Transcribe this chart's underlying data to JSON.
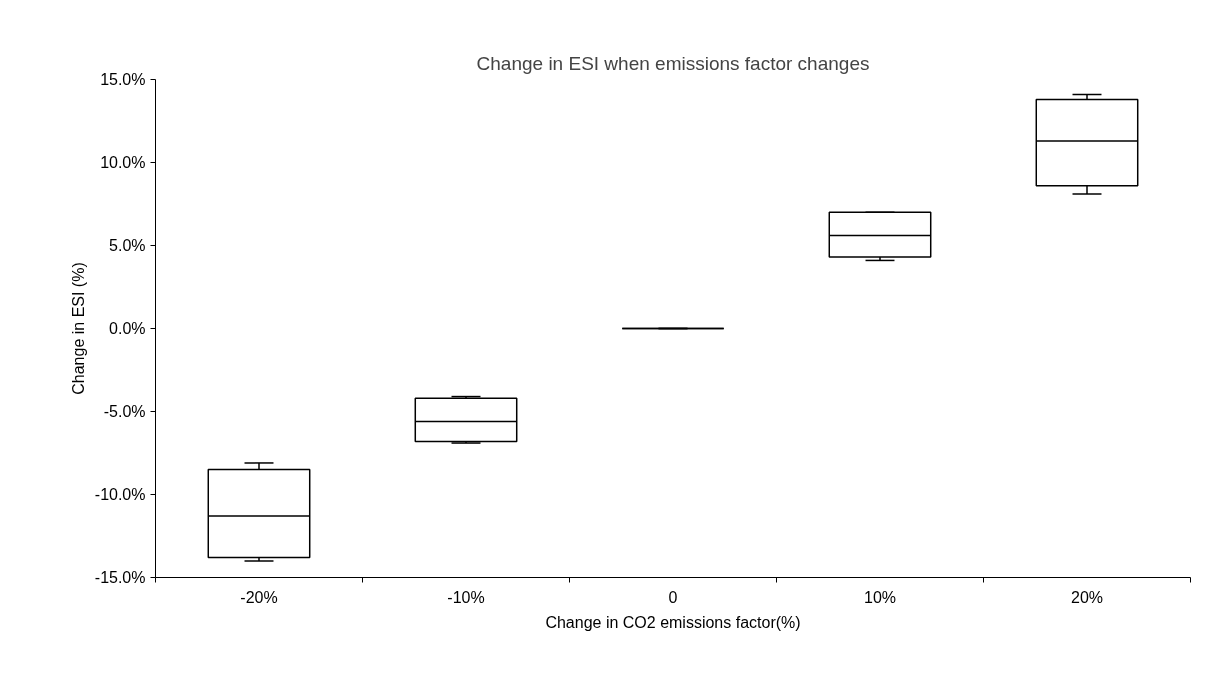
{
  "chart_data": {
    "type": "box",
    "title": "Change in ESI when emissions factor changes",
    "xlabel": "Change in CO2 emissions factor(%)",
    "ylabel": "Change in ESI (%)",
    "categories": [
      "-20%",
      "-10%",
      "0",
      "10%",
      "20%"
    ],
    "boxes": [
      {
        "low": -14.0,
        "q1": -13.8,
        "median": -11.3,
        "q3": -8.5,
        "high": -8.1
      },
      {
        "low": -6.9,
        "q1": -6.8,
        "median": -5.6,
        "q3": -4.2,
        "high": -4.1
      },
      {
        "low": 0,
        "q1": 0,
        "median": 0,
        "q3": 0,
        "high": 0
      },
      {
        "low": 4.1,
        "q1": 4.3,
        "median": 5.6,
        "q3": 7.0,
        "high": 7.0
      },
      {
        "low": 8.1,
        "q1": 8.6,
        "median": 11.3,
        "q3": 13.8,
        "high": 14.1
      }
    ],
    "ylim": [
      -15,
      15
    ],
    "yticks": [
      {
        "value": -15,
        "label": "-15.0%"
      },
      {
        "value": -10,
        "label": "-10.0%"
      },
      {
        "value": -5,
        "label": "-5.0%"
      },
      {
        "value": 0,
        "label": "0.0%"
      },
      {
        "value": 5,
        "label": "5.0%"
      },
      {
        "value": 10,
        "label": "10.0%"
      },
      {
        "value": 15,
        "label": "15.0%"
      }
    ],
    "grid": false
  }
}
